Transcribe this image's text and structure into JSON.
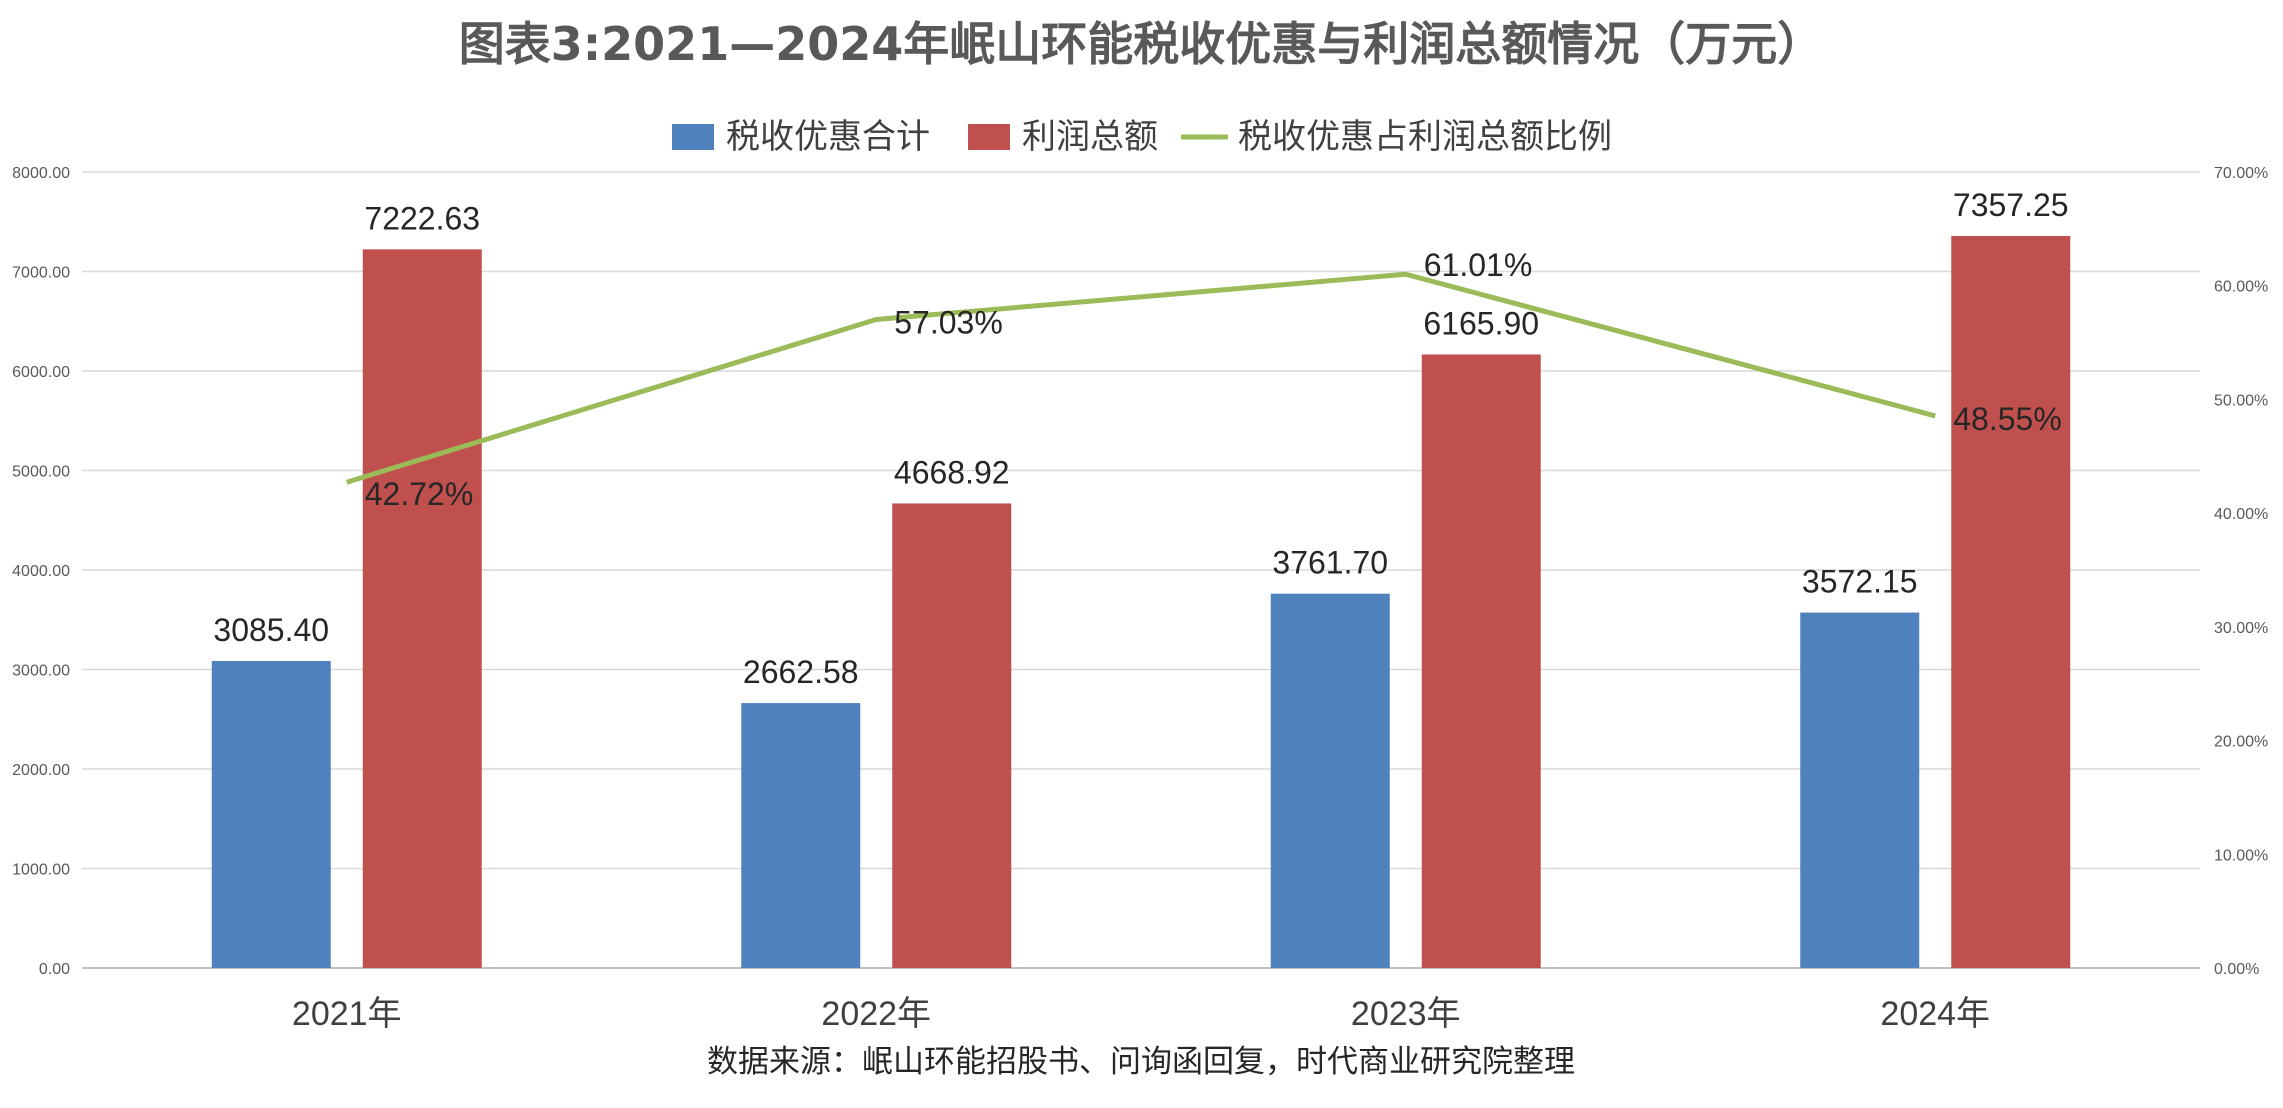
{
  "chart_data": {
    "type": "bar",
    "title": "图表3:2021—2024年岷山环能税收优惠与利润总额情况（万元）",
    "categories": [
      "2021年",
      "2022年",
      "2023年",
      "2024年"
    ],
    "series": [
      {
        "name": "税收优惠合计",
        "kind": "bar",
        "axis": "left",
        "color": "#4F81BD",
        "values": [
          3085.4,
          2662.58,
          3761.7,
          3572.15
        ],
        "labels": [
          "3085.40",
          "2662.58",
          "3761.70",
          "3572.15"
        ]
      },
      {
        "name": "利润总额",
        "kind": "bar",
        "axis": "left",
        "color": "#C0504D",
        "values": [
          7222.63,
          4668.92,
          6165.9,
          7357.25
        ],
        "labels": [
          "7222.63",
          "4668.92",
          "6165.90",
          "7357.25"
        ]
      },
      {
        "name": "税收优惠占利润总额比例",
        "kind": "line",
        "axis": "right",
        "color": "#9BBB59",
        "values": [
          42.72,
          57.03,
          61.01,
          48.55
        ],
        "labels": [
          "42.72%",
          "57.03%",
          "61.01%",
          "48.55%"
        ]
      }
    ],
    "y_left": {
      "min": 0,
      "max": 8000,
      "ticks": [
        "0.00",
        "1000.00",
        "2000.00",
        "3000.00",
        "4000.00",
        "5000.00",
        "6000.00",
        "7000.00",
        "8000.00"
      ]
    },
    "y_right": {
      "min": 0,
      "max": 70,
      "unit": "%",
      "ticks": [
        "0.00%",
        "10.00%",
        "20.00%",
        "30.00%",
        "40.00%",
        "50.00%",
        "60.00%",
        "70.00%"
      ]
    },
    "grid": true,
    "legend_position": "top",
    "source": "数据来源：岷山环能招股书、问询函回复，时代商业研究院整理"
  }
}
